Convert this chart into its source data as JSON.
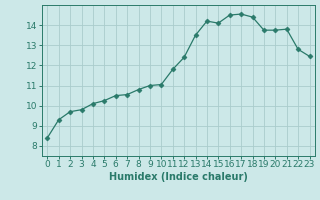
{
  "x": [
    0,
    1,
    2,
    3,
    4,
    5,
    6,
    7,
    8,
    9,
    10,
    11,
    12,
    13,
    14,
    15,
    16,
    17,
    18,
    19,
    20,
    21,
    22,
    23
  ],
  "y": [
    8.4,
    9.3,
    9.7,
    9.8,
    10.1,
    10.25,
    10.5,
    10.55,
    10.8,
    11.0,
    11.05,
    11.8,
    12.4,
    13.5,
    14.2,
    14.1,
    14.5,
    14.55,
    14.4,
    13.75,
    13.75,
    13.8,
    12.8,
    12.45
  ],
  "line_color": "#2a7a6a",
  "marker": "D",
  "marker_size": 2.5,
  "bg_color": "#cce8e8",
  "grid_color": "#aacccc",
  "xlabel": "Humidex (Indice chaleur)",
  "xlim": [
    -0.5,
    23.5
  ],
  "ylim": [
    7.5,
    15.0
  ],
  "yticks": [
    8,
    9,
    10,
    11,
    12,
    13,
    14
  ],
  "xticks": [
    0,
    1,
    2,
    3,
    4,
    5,
    6,
    7,
    8,
    9,
    10,
    11,
    12,
    13,
    14,
    15,
    16,
    17,
    18,
    19,
    20,
    21,
    22,
    23
  ],
  "tick_color": "#2a7a6a",
  "label_color": "#2a7a6a",
  "axis_color": "#2a7a6a",
  "xlabel_fontsize": 7,
  "tick_fontsize": 6.5
}
